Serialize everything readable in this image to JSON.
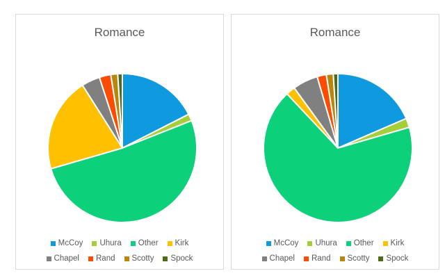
{
  "chart_data": [
    {
      "type": "pie",
      "title": "Romance",
      "categories": [
        "McCoy",
        "Uhura",
        "Other",
        "Kirk",
        "Chapel",
        "Rand",
        "Scotty",
        "Spock"
      ],
      "values": [
        17.5,
        1.5,
        51.5,
        20.5,
        4.0,
        2.5,
        1.5,
        1.0
      ],
      "colors": [
        "#0f9ae0",
        "#a6ce39",
        "#0dd17a",
        "#ffc000",
        "#808080",
        "#fc4c02",
        "#b8860b",
        "#4e6b1a"
      ],
      "start": "12 o'clock",
      "direction": "clockwise",
      "legend": "bottom"
    },
    {
      "type": "pie",
      "title": "Romance",
      "categories": [
        "McCoy",
        "Uhura",
        "Other",
        "Kirk",
        "Chapel",
        "Rand",
        "Scotty",
        "Spock"
      ],
      "values": [
        18.5,
        2.0,
        67.5,
        2.0,
        5.5,
        2.0,
        1.5,
        1.0
      ],
      "colors": [
        "#0f9ae0",
        "#a6ce39",
        "#0dd17a",
        "#ffc000",
        "#808080",
        "#fc4c02",
        "#b8860b",
        "#4e6b1a"
      ],
      "start": "12 o'clock",
      "direction": "clockwise",
      "legend": "bottom"
    }
  ]
}
